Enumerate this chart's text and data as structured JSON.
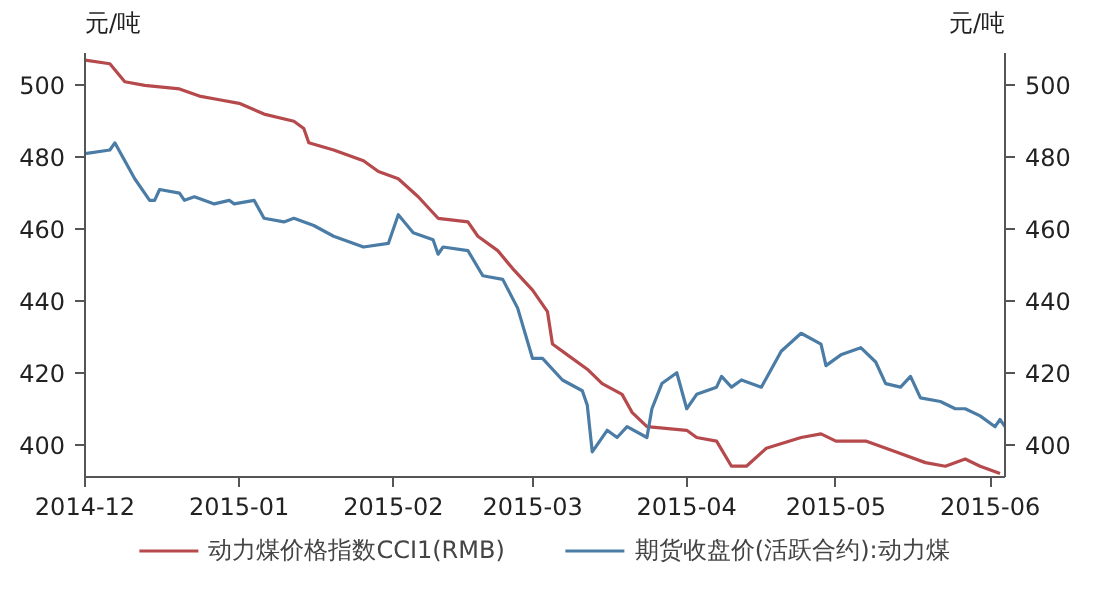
{
  "chart_data": {
    "type": "line",
    "ylabel": "元/吨",
    "y2label": "元/吨",
    "xlim": [
      "2014-12-01",
      "2015-06-04"
    ],
    "xticks": [
      "2014-12",
      "2015-01",
      "2015-02",
      "2015-03",
      "2015-04",
      "2015-05",
      "2015-06"
    ],
    "ylim": [
      391,
      509
    ],
    "yticks": [
      400,
      420,
      440,
      460,
      480,
      500
    ],
    "y2lim": [
      391,
      509
    ],
    "y2ticks": [
      400,
      420,
      440,
      460,
      480,
      500
    ],
    "grid": false,
    "legend": "bottom",
    "line_style": "solid",
    "marker": "none",
    "series": [
      {
        "name": "动力煤价格指数CCI1(RMB)",
        "color": "#b5494b",
        "x": [
          "2014-12-01",
          "2014-12-06",
          "2014-12-09",
          "2014-12-13",
          "2014-12-20",
          "2014-12-24",
          "2014-12-28",
          "2015-01-01",
          "2015-01-06",
          "2015-01-12",
          "2015-01-14",
          "2015-01-15",
          "2015-01-20",
          "2015-01-26",
          "2015-01-29",
          "2015-02-02",
          "2015-02-06",
          "2015-02-10",
          "2015-02-16",
          "2015-02-18",
          "2015-02-22",
          "2015-02-25",
          "2015-03-01",
          "2015-03-04",
          "2015-03-05",
          "2015-03-08",
          "2015-03-12",
          "2015-03-15",
          "2015-03-19",
          "2015-03-21",
          "2015-03-24",
          "2015-04-01",
          "2015-04-03",
          "2015-04-07",
          "2015-04-10",
          "2015-04-13",
          "2015-04-17",
          "2015-04-24",
          "2015-04-28",
          "2015-05-01",
          "2015-05-07",
          "2015-05-13",
          "2015-05-19",
          "2015-05-23",
          "2015-05-27",
          "2015-05-30",
          "2015-06-03"
        ],
        "values": [
          507,
          506,
          501,
          500,
          499,
          497,
          496,
          495,
          492,
          490,
          488,
          484,
          482,
          479,
          476,
          474,
          469,
          463,
          462,
          458,
          454,
          449,
          443,
          437,
          428,
          425,
          421,
          417,
          414,
          409,
          405,
          404,
          402,
          401,
          394,
          394,
          399,
          402,
          403,
          401,
          401,
          398,
          395,
          394,
          396,
          394,
          392
        ]
      },
      {
        "name": "期货收盘价(活跃合约):动力煤",
        "color": "#4a7ca6",
        "x": [
          "2014-12-01",
          "2014-12-06",
          "2014-12-07",
          "2014-12-09",
          "2014-12-11",
          "2014-12-14",
          "2014-12-15",
          "2014-12-16",
          "2014-12-20",
          "2014-12-21",
          "2014-12-23",
          "2014-12-27",
          "2014-12-30",
          "2014-12-31",
          "2015-01-04",
          "2015-01-06",
          "2015-01-10",
          "2015-01-12",
          "2015-01-16",
          "2015-01-20",
          "2015-01-26",
          "2015-01-31",
          "2015-02-02",
          "2015-02-05",
          "2015-02-09",
          "2015-02-10",
          "2015-02-11",
          "2015-02-16",
          "2015-02-19",
          "2015-02-23",
          "2015-02-26",
          "2015-03-01",
          "2015-03-03",
          "2015-03-07",
          "2015-03-11",
          "2015-03-12",
          "2015-03-13",
          "2015-03-16",
          "2015-03-18",
          "2015-03-20",
          "2015-03-24",
          "2015-03-25",
          "2015-03-27",
          "2015-03-30",
          "2015-04-01",
          "2015-04-03",
          "2015-04-07",
          "2015-04-08",
          "2015-04-10",
          "2015-04-12",
          "2015-04-16",
          "2015-04-20",
          "2015-04-24",
          "2015-04-28",
          "2015-04-29",
          "2015-05-02",
          "2015-05-06",
          "2015-05-09",
          "2015-05-11",
          "2015-05-14",
          "2015-05-16",
          "2015-05-18",
          "2015-05-22",
          "2015-05-25",
          "2015-05-27",
          "2015-05-30",
          "2015-06-02",
          "2015-06-03",
          "2015-06-04"
        ],
        "values": [
          481,
          482,
          484,
          479,
          474,
          468,
          468,
          471,
          470,
          468,
          469,
          467,
          468,
          467,
          468,
          463,
          462,
          463,
          461,
          458,
          455,
          456,
          464,
          459,
          457,
          453,
          455,
          454,
          447,
          446,
          438,
          424,
          424,
          418,
          415,
          411,
          398,
          404,
          402,
          405,
          402,
          410,
          417,
          420,
          410,
          414,
          416,
          419,
          416,
          418,
          416,
          426,
          431,
          428,
          422,
          425,
          427,
          423,
          417,
          416,
          419,
          413,
          412,
          410,
          410,
          408,
          405,
          407,
          405
        ]
      }
    ]
  }
}
